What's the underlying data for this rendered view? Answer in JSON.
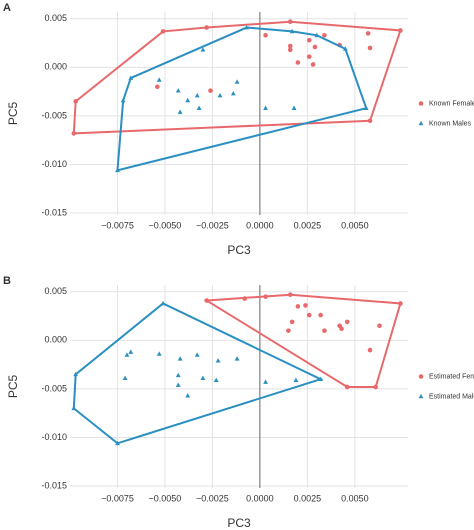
{
  "chart_data": [
    {
      "type": "scatter",
      "panel_label": "A",
      "xlabel": "PC3",
      "ylabel": "PC5",
      "grid": true,
      "hull": true,
      "legend": "right",
      "xlim": [
        -0.01,
        0.0078
      ],
      "ylim": [
        -0.0152,
        0.0057
      ],
      "xticks": [
        {
          "value": -0.0075,
          "label": "−0.0075"
        },
        {
          "value": -0.005,
          "label": "−0.0050"
        },
        {
          "value": -0.0025,
          "label": "−0.0025"
        },
        {
          "value": 0,
          "label": "0.0000"
        },
        {
          "value": 0.0025,
          "label": "0.0025"
        },
        {
          "value": 0.005,
          "label": "0.0050"
        }
      ],
      "yticks": [
        {
          "value": -0.015,
          "label": "-0.015"
        },
        {
          "value": -0.01,
          "label": "-0.010"
        },
        {
          "value": -0.005,
          "label": "-0.005"
        },
        {
          "value": 0,
          "label": "0.000"
        },
        0.005
      ],
      "series": [
        {
          "name": "Known Females",
          "color": "#e8696b",
          "marker": "circle",
          "x": [
            -0.0051,
            -0.0028,
            0.0016,
            0.0074,
            0.0058,
            -0.0098,
            -0.0097,
            0.0003,
            0.0016,
            0.0016,
            0.0026,
            0.0034,
            0.0029,
            0.0042,
            0.0057,
            0.0058,
            0.0026,
            0.002,
            0.0028,
            -0.0026,
            -0.0054
          ],
          "y": [
            0.0037,
            0.0041,
            0.0047,
            0.0038,
            -0.0055,
            -0.0068,
            -0.0035,
            0.0033,
            0.0022,
            0.0018,
            0.0028,
            0.0033,
            0.0021,
            0.0023,
            0.0035,
            0.002,
            0.0011,
            0.0005,
            0.0003,
            -0.0024,
            -0.002
          ]
        },
        {
          "name": "Known Males",
          "color": "#2b8fc2",
          "marker": "triangle",
          "x": [
            -0.0075,
            -0.0072,
            -0.0068,
            -0.0007,
            0.0017,
            0.0045,
            0.0056,
            -0.003,
            -0.0053,
            -0.0043,
            -0.0038,
            -0.0032,
            -0.0042,
            -0.0021,
            -0.0014,
            -0.0012,
            0.0003,
            0.0018,
            0.003,
            -0.0033
          ],
          "y": [
            -0.0106,
            -0.0034,
            -0.0011,
            0.0041,
            0.0037,
            0.0019,
            -0.0042,
            0.0018,
            -0.0013,
            -0.0024,
            -0.0034,
            -0.0042,
            -0.0046,
            -0.0029,
            -0.0027,
            -0.0015,
            -0.0042,
            -0.0042,
            0.0033,
            -0.0029
          ]
        }
      ]
    },
    {
      "type": "scatter",
      "panel_label": "B",
      "xlabel": "PC3",
      "ylabel": "PC5",
      "grid": true,
      "hull": true,
      "legend": "right",
      "xlim": [
        -0.01,
        0.0078
      ],
      "ylim": [
        -0.0152,
        0.0057
      ],
      "xticks": [
        {
          "value": -0.0075,
          "label": "−0.0075"
        },
        {
          "value": -0.005,
          "label": "−0.0050"
        },
        {
          "value": -0.0025,
          "label": "−0.0025"
        },
        {
          "value": 0,
          "label": "0.0000"
        },
        {
          "value": 0.0025,
          "label": "0.0025"
        },
        {
          "value": 0.005,
          "label": "0.0050"
        }
      ],
      "yticks": [
        {
          "value": -0.015,
          "label": "-0.015"
        },
        {
          "value": -0.01,
          "label": "-0.010"
        },
        {
          "value": -0.005,
          "label": "-0.005"
        },
        {
          "value": 0,
          "label": "0.000"
        },
        0.005
      ],
      "series": [
        {
          "name": "Estimated Females",
          "color": "#e8696b",
          "marker": "circle",
          "x": [
            -0.0028,
            -0.0008,
            0.0003,
            0.0016,
            0.0074,
            0.0061,
            0.0046,
            0.002,
            0.0024,
            0.0026,
            0.0032,
            0.0034,
            0.0042,
            0.0043,
            0.0046,
            0.0063,
            0.0058,
            0.0017,
            0.0015
          ],
          "y": [
            0.0041,
            0.0043,
            0.0045,
            0.0047,
            0.0038,
            -0.0048,
            -0.0048,
            0.0035,
            0.0036,
            0.0026,
            0.0026,
            0.001,
            0.0015,
            0.0012,
            0.0019,
            0.0015,
            -0.001,
            0.0019,
            0.001
          ]
        },
        {
          "name": "Estimated Males",
          "color": "#2b8fc2",
          "marker": "triangle",
          "x": [
            -0.0051,
            -0.0097,
            -0.0098,
            -0.0075,
            0.0032,
            -0.0068,
            -0.007,
            -0.0053,
            -0.0071,
            -0.0042,
            -0.0033,
            -0.0022,
            -0.0012,
            -0.0043,
            -0.0043,
            -0.003,
            -0.0023,
            -0.0038,
            0.0003,
            0.0019
          ],
          "y": [
            0.0038,
            -0.0035,
            -0.007,
            -0.0106,
            -0.004,
            -0.0012,
            -0.0015,
            -0.0014,
            -0.0039,
            -0.0019,
            -0.0015,
            -0.0021,
            -0.0019,
            -0.0036,
            -0.0046,
            -0.0039,
            -0.0041,
            -0.0057,
            -0.0043,
            -0.0041
          ]
        }
      ]
    }
  ]
}
